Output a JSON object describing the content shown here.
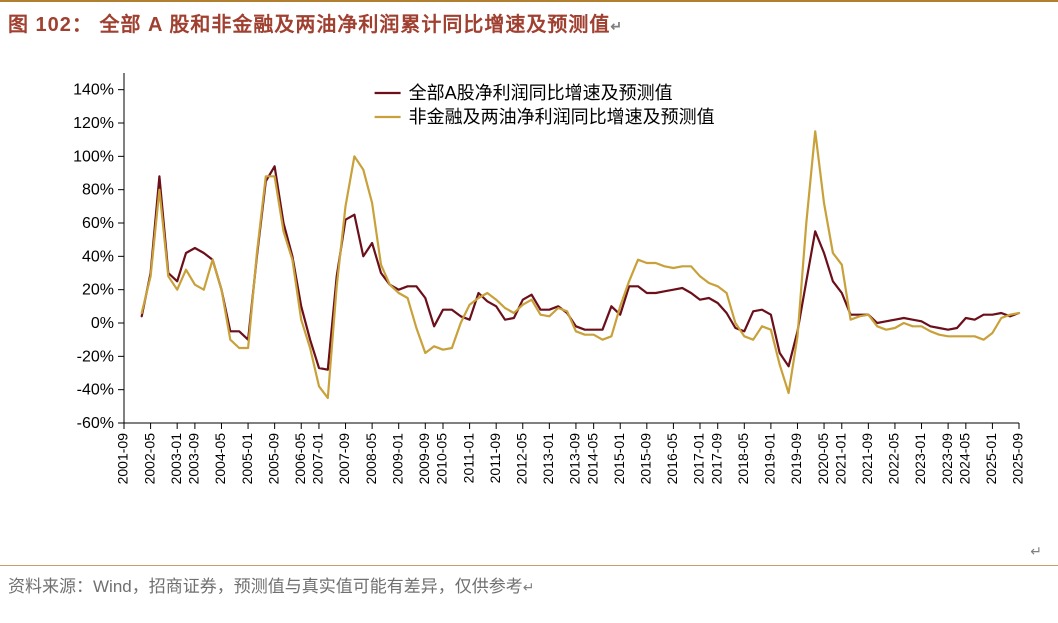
{
  "header": {
    "figure_label": "图 102：",
    "title_text": "全部 A 股和非金融及两油净利润累计同比增速及预测值",
    "trail_symbol": "↵"
  },
  "footer": {
    "source_text": "资料来源：Wind，招商证券，预测值与真实值可能有差异，仅供参考",
    "trail_symbol": "↵"
  },
  "chart": {
    "type": "line",
    "background_color": "#ffffff",
    "plot_border_color": "#000000",
    "plot_border_width": 1,
    "grid_on": false,
    "y_axis": {
      "min": -60,
      "max": 150,
      "tick_start": -60,
      "tick_step": 20,
      "tick_end": 140,
      "label_suffix": "%",
      "label_color": "#000000",
      "label_fontsize": 16
    },
    "x_axis": {
      "labels": [
        "2001-09",
        "2002-05",
        "2003-01",
        "2003-09",
        "2004-05",
        "2005-01",
        "2005-09",
        "2006-05",
        "2007-01",
        "2007-09",
        "2008-05",
        "2009-01",
        "2009-09",
        "2010-05",
        "2011-01",
        "2011-09",
        "2012-05",
        "2013-01",
        "2013-09",
        "2014-05",
        "2015-01",
        "2015-09",
        "2016-05",
        "2017-01",
        "2017-09",
        "2018-05",
        "2019-01",
        "2019-09",
        "2020-05",
        "2021-01",
        "2021-09",
        "2022-05",
        "2023-01",
        "2023-09",
        "2024-05",
        "2025-01",
        "2025-09"
      ],
      "label_color": "#000000",
      "label_fontsize": 14,
      "label_rotation": -90
    },
    "legend": {
      "position": "inside-top-center",
      "fontsize": 18,
      "text_color": "#000000",
      "line_length": 26
    },
    "series": [
      {
        "name": "全部A股净利润同比增速及预测值",
        "color": "#6b0f1a",
        "line_width": 2.2,
        "dash": "solid",
        "data": [
          null,
          null,
          4,
          30,
          88,
          30,
          25,
          42,
          45,
          42,
          38,
          20,
          -5,
          -5,
          -10,
          40,
          85,
          94,
          60,
          40,
          10,
          -10,
          -27,
          -28,
          28,
          62,
          65,
          40,
          48,
          30,
          23,
          20,
          22,
          22,
          15,
          -2,
          8,
          8,
          4,
          2,
          18,
          13,
          10,
          2,
          3,
          14,
          17,
          8,
          8,
          10,
          6,
          -2,
          -4,
          -4,
          -4,
          10,
          5,
          22,
          22,
          18,
          18,
          19,
          20,
          21,
          18,
          14,
          15,
          12,
          6,
          -3,
          -5,
          7,
          8,
          5,
          -18,
          -26,
          -5,
          25,
          55,
          42,
          25,
          18,
          5,
          5,
          5,
          0,
          1,
          2,
          3,
          2,
          1,
          -2,
          -3,
          -4,
          -3,
          3,
          2,
          5,
          5,
          6,
          4,
          6
        ]
      },
      {
        "name": "非金融及两油净利润同比增速及预测值",
        "color": "#c9a13b",
        "line_width": 2.2,
        "dash": "solid",
        "data": [
          null,
          null,
          6,
          28,
          80,
          28,
          20,
          32,
          23,
          20,
          38,
          20,
          -10,
          -15,
          -15,
          42,
          88,
          88,
          55,
          38,
          2,
          -15,
          -38,
          -45,
          22,
          70,
          100,
          92,
          72,
          35,
          23,
          18,
          15,
          -3,
          -18,
          -14,
          -16,
          -15,
          0,
          11,
          15,
          18,
          14,
          9,
          6,
          11,
          14,
          5,
          4,
          9,
          7,
          -5,
          -7,
          -7,
          -10,
          -8,
          10,
          25,
          38,
          36,
          36,
          34,
          33,
          34,
          34,
          28,
          24,
          22,
          18,
          0,
          -8,
          -10,
          -2,
          -4,
          -25,
          -42,
          -8,
          60,
          115,
          72,
          42,
          35,
          2,
          4,
          5,
          -2,
          -4,
          -3,
          0,
          -2,
          -2,
          -5,
          -7,
          -8,
          -8,
          -8,
          -8,
          -10,
          -6,
          3,
          5,
          6
        ]
      }
    ]
  },
  "colors": {
    "title_color": "#a04030",
    "rule_color": "#b08030",
    "footer_color": "#707070"
  }
}
